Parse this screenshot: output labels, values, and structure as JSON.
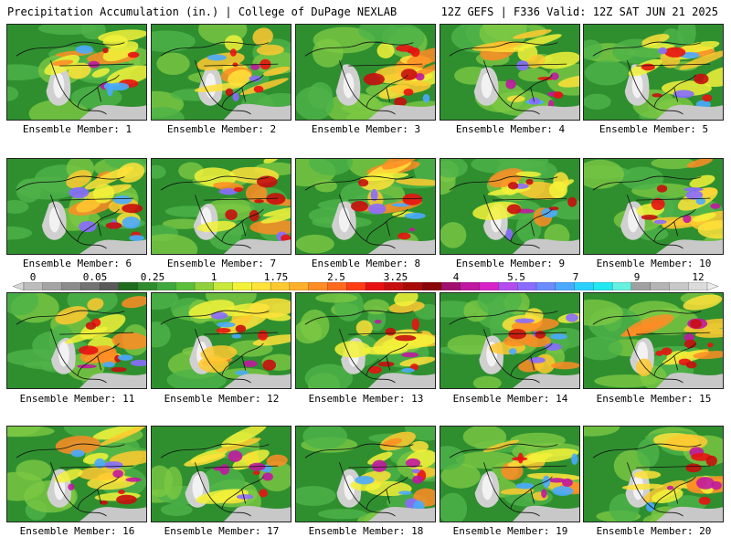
{
  "header": {
    "left_title": "Precipitation Accumulation (in.) | College of DuPage NEXLAB",
    "right_title": "12Z GEFS | F336 Valid: 12Z SAT JUN 21 2025"
  },
  "members": [
    "Ensemble Member: 1",
    "Ensemble Member: 2",
    "Ensemble Member: 3",
    "Ensemble Member: 4",
    "Ensemble Member: 5",
    "Ensemble Member: 6",
    "Ensemble Member: 7",
    "Ensemble Member: 8",
    "Ensemble Member: 9",
    "Ensemble Member: 10",
    "Ensemble Member: 11",
    "Ensemble Member: 12",
    "Ensemble Member: 13",
    "Ensemble Member: 14",
    "Ensemble Member: 15",
    "Ensemble Member: 16",
    "Ensemble Member: 17",
    "Ensemble Member: 18",
    "Ensemble Member: 19",
    "Ensemble Member: 20"
  ],
  "colorbar": {
    "labels": [
      "0",
      "0.05",
      "0.25",
      "1",
      "1.75",
      "2.5",
      "3.25",
      "4",
      "5.5",
      "7",
      "9",
      "12"
    ],
    "colors": [
      "#d6d6d6",
      "#bdbdbd",
      "#a4a4a4",
      "#8c8c8c",
      "#737373",
      "#5a5a5a",
      "#1f6b1f",
      "#2e8b2e",
      "#3fa83f",
      "#5cbf3a",
      "#8fd13a",
      "#c8e83c",
      "#f2f23a",
      "#ffe23a",
      "#ffc930",
      "#ffb02a",
      "#ff8c24",
      "#ff6a1e",
      "#ff3c14",
      "#e81212",
      "#c80e0e",
      "#a80a0a",
      "#8a0606",
      "#a0106e",
      "#c018a0",
      "#d824c8",
      "#b44cf0",
      "#8a6cff",
      "#6a8cff",
      "#4aaaff",
      "#2ad0ff",
      "#22e8f0",
      "#66f0e0",
      "#a0a0a0",
      "#b4b4b4",
      "#c8c8c8",
      "#dcdcdc",
      "#ececec"
    ]
  }
}
